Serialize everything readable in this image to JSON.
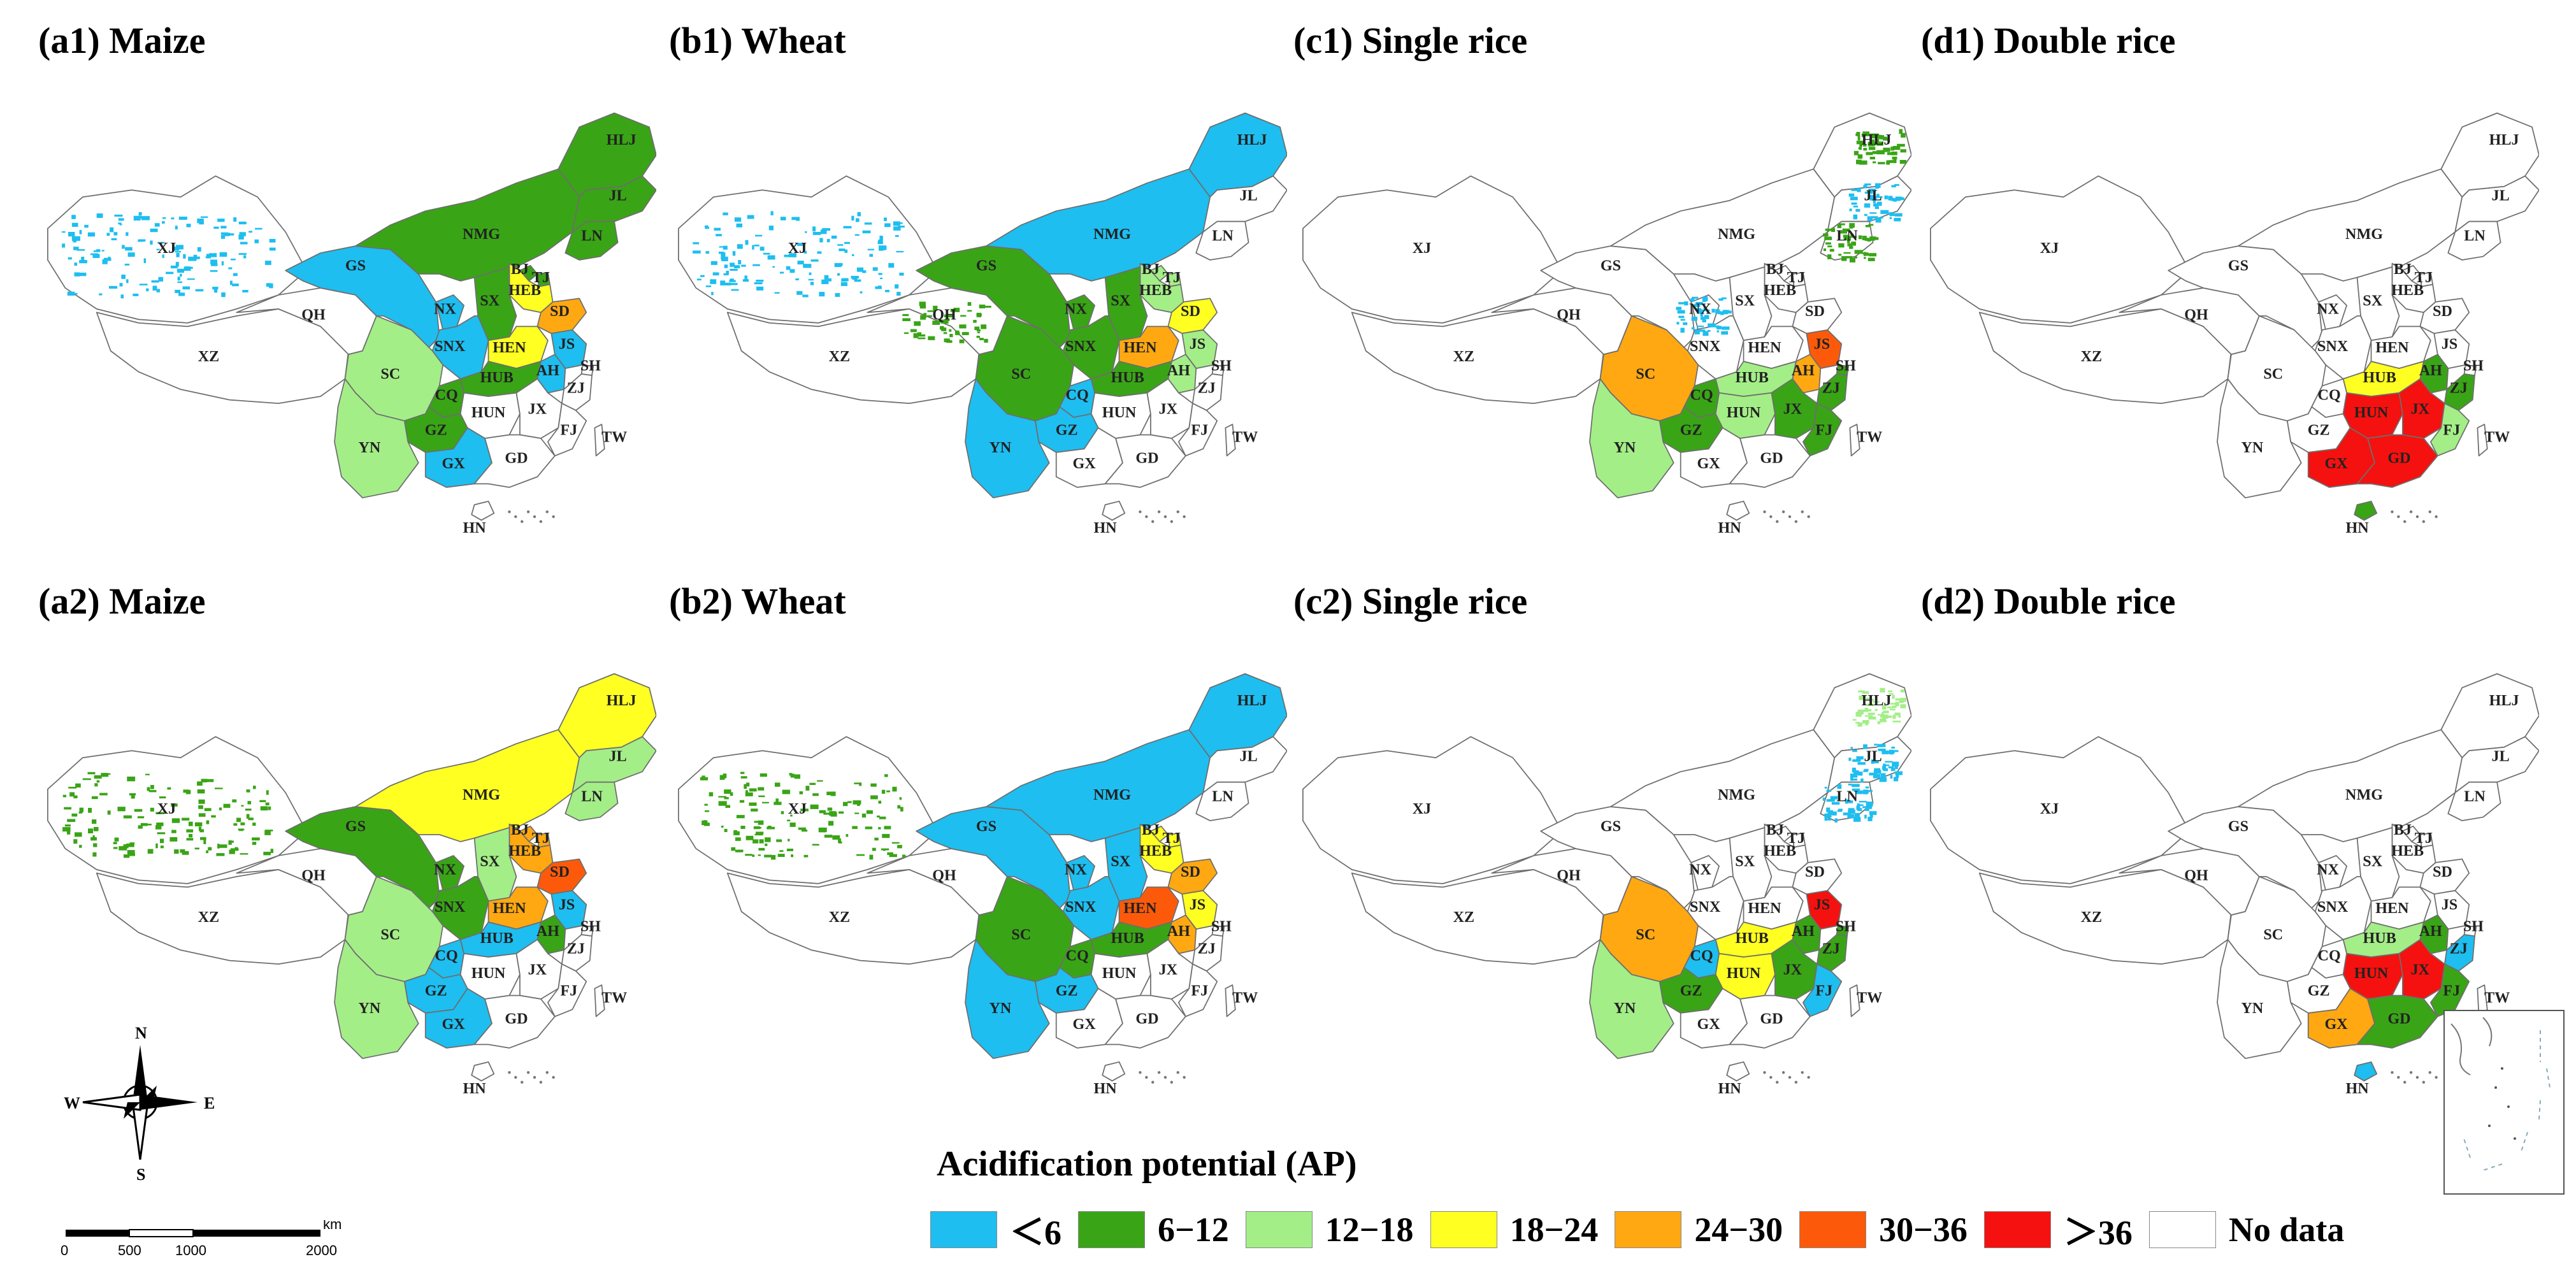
{
  "panels": [
    {
      "id": "a1",
      "title": "(a1) Maize",
      "row": 0,
      "col": 0,
      "regions": {
        "XJ": "speck0",
        "HLJ": 1,
        "JL": 1,
        "LN": 1,
        "NMG": 1,
        "BJ": 1,
        "TJ": 1,
        "HEB": 3,
        "SD": 4,
        "SX": 1,
        "SNX": 0,
        "NX": 0,
        "GS": 0,
        "HEN": 3,
        "AH": 0,
        "JS": 0,
        "HUB": 1,
        "CQ": 1,
        "SC": 2,
        "GZ": 1,
        "YN": 2,
        "GX": 0
      }
    },
    {
      "id": "b1",
      "title": "(b1) Wheat",
      "row": 0,
      "col": 1,
      "regions": {
        "XJ": "speck0",
        "HLJ": 0,
        "NMG": 0,
        "BJ": 2,
        "TJ": 2,
        "HEB": 2,
        "SD": 3,
        "SX": 1,
        "SNX": 1,
        "NX": 1,
        "GS": 1,
        "QH": "speck1",
        "HEN": 4,
        "AH": 2,
        "JS": 2,
        "HUB": 1,
        "CQ": 0,
        "SC": 1,
        "GZ": 0,
        "YN": 0
      }
    },
    {
      "id": "c1",
      "title": "(c1) Single rice",
      "row": 0,
      "col": 2,
      "regions": {
        "HLJ": "speck1",
        "JL": "speck0",
        "LN": "speck1",
        "NX": "speck0",
        "HUB": 2,
        "AH": 4,
        "JS": 5,
        "SH": 1,
        "ZJ": 1,
        "JX": 1,
        "HUN": 2,
        "FJ": 1,
        "CQ": 1,
        "SC": 4,
        "GZ": 1,
        "YN": 2
      }
    },
    {
      "id": "d1",
      "title": "(d1) Double rice",
      "row": 0,
      "col": 3,
      "regions": {
        "HUB": 3,
        "AH": 1,
        "ZJ": 1,
        "FJ": 2,
        "HUN": 6,
        "JX": 6,
        "GD": 6,
        "GX": 6,
        "HN": 1
      }
    },
    {
      "id": "a2",
      "title": "(a2) Maize",
      "row": 1,
      "col": 0,
      "regions": {
        "XJ": "speck1",
        "HLJ": 3,
        "JL": 2,
        "LN": 2,
        "NMG": 3,
        "BJ": 4,
        "TJ": 4,
        "HEB": 4,
        "SD": 5,
        "SX": 2,
        "SNX": 1,
        "NX": 1,
        "GS": 1,
        "HEN": 4,
        "AH": 1,
        "JS": 0,
        "HUB": 0,
        "CQ": 0,
        "SC": 2,
        "GZ": 0,
        "YN": 2,
        "GX": 0
      }
    },
    {
      "id": "b2",
      "title": "(b2) Wheat",
      "row": 1,
      "col": 1,
      "regions": {
        "XJ": "speck1",
        "HLJ": 0,
        "NMG": 0,
        "BJ": 3,
        "TJ": 3,
        "HEB": 3,
        "SD": 4,
        "SX": 0,
        "SNX": 0,
        "NX": 0,
        "GS": 0,
        "HEN": 5,
        "AH": 4,
        "JS": 3,
        "HUB": 1,
        "CQ": 1,
        "SC": 1,
        "GZ": 0,
        "YN": 0
      }
    },
    {
      "id": "c2",
      "title": "(c2) Single rice",
      "row": 1,
      "col": 2,
      "regions": {
        "HLJ": "speck2",
        "JL": "speck0",
        "LN": "speck0",
        "HUB": 3,
        "AH": 1,
        "JS": 6,
        "SH": 1,
        "ZJ": 1,
        "JX": 1,
        "HUN": 3,
        "FJ": 0,
        "CQ": 0,
        "SC": 4,
        "GZ": 1,
        "YN": 2
      }
    },
    {
      "id": "d2",
      "title": "(d2) Double rice",
      "row": 1,
      "col": 3,
      "regions": {
        "HUB": 2,
        "AH": 1,
        "ZJ": 0,
        "FJ": 1,
        "HUN": 6,
        "JX": 6,
        "GD": 1,
        "GX": 4,
        "HN": 0
      }
    }
  ],
  "province_labels": [
    "XJ",
    "XZ",
    "QH",
    "GS",
    "NMG",
    "HLJ",
    "JL",
    "LN",
    "BJ",
    "TJ",
    "HEB",
    "SX",
    "SD",
    "NX",
    "SNX",
    "HEN",
    "JS",
    "SH",
    "AH",
    "HUB",
    "SC",
    "CQ",
    "ZJ",
    "HUN",
    "JX",
    "GZ",
    "YN",
    "FJ",
    "GX",
    "GD",
    "TW",
    "HN"
  ],
  "legend": {
    "title": "Acidification potential (AP)",
    "classes": [
      {
        "label": "＜6",
        "color": "#1ebef0"
      },
      {
        "label": "6−12",
        "color": "#3aa417"
      },
      {
        "label": "12−18",
        "color": "#a4ee88"
      },
      {
        "label": "18−24",
        "color": "#ffff22"
      },
      {
        "label": "24−30",
        "color": "#ffa812"
      },
      {
        "label": "30−36",
        "color": "#fc5a0a"
      },
      {
        "label": "＞36",
        "color": "#f5110f"
      },
      {
        "label": "No data",
        "color": "#ffffff"
      }
    ]
  },
  "compass": {
    "n": "N",
    "e": "E",
    "s": "S",
    "w": "W"
  },
  "scalebar": {
    "unit": "km",
    "ticks": [
      "0",
      "500",
      "1000",
      "2000"
    ]
  }
}
